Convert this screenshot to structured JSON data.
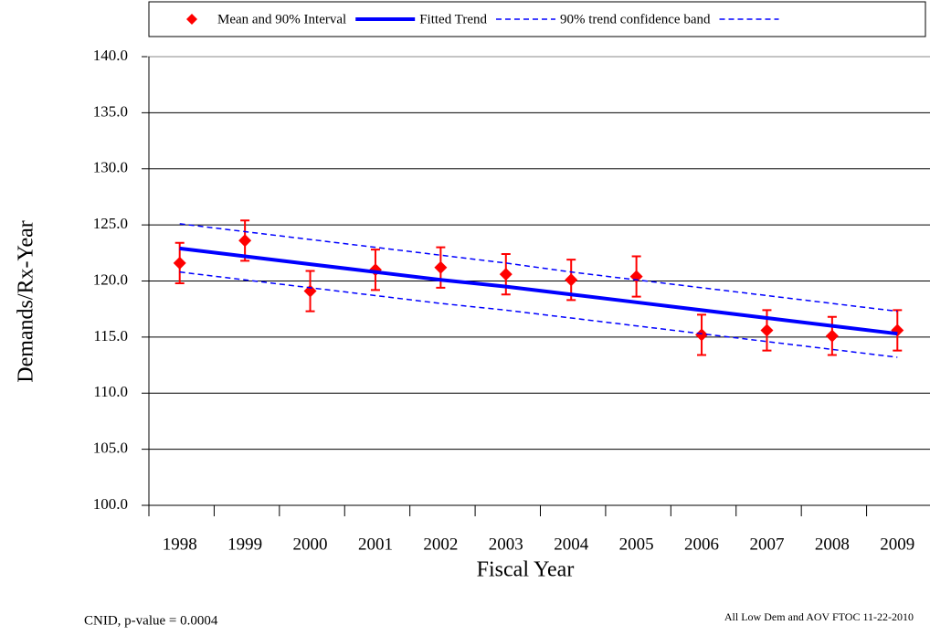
{
  "chart_data": {
    "type": "line",
    "xlabel": "Fiscal Year",
    "ylabel": "Demands/Rx-Year",
    "categories": [
      "1998",
      "1999",
      "2000",
      "2001",
      "2002",
      "2003",
      "2004",
      "2005",
      "2006",
      "2007",
      "2008",
      "2009"
    ],
    "series": [
      {
        "name": "Mean and 90% Interval",
        "color": "#ff0000",
        "style": "marker",
        "values": [
          121.6,
          123.6,
          119.1,
          121.0,
          121.2,
          120.6,
          120.1,
          120.4,
          115.2,
          115.6,
          115.1,
          115.6
        ],
        "errors": [
          1.8,
          1.8,
          1.8,
          1.8,
          1.8,
          1.8,
          1.8,
          1.8,
          1.8,
          1.8,
          1.7,
          1.8
        ]
      },
      {
        "name": "Fitted Trend",
        "color": "#0000ff",
        "style": "solid",
        "values": [
          122.9,
          122.2,
          121.5,
          120.8,
          120.1,
          119.5,
          118.8,
          118.1,
          117.4,
          116.7,
          116.0,
          115.3
        ]
      },
      {
        "name": "90% trend confidence band",
        "color": "#0000ff",
        "style": "dashed",
        "values": [
          125.1,
          124.4,
          123.7,
          123.0,
          122.3,
          121.6,
          120.8,
          120.1,
          119.4,
          118.7,
          118.0,
          117.3
        ]
      },
      {
        "color": "#0000ff",
        "style": "dashed",
        "values": [
          120.8,
          120.1,
          119.4,
          118.7,
          118.0,
          117.4,
          116.7,
          116.0,
          115.3,
          114.6,
          113.9,
          113.2
        ]
      }
    ],
    "ylim": [
      100,
      140
    ],
    "yticks": [
      {
        "value": 100,
        "label": "100.0"
      },
      {
        "value": 105,
        "label": "105.0"
      },
      {
        "value": 110,
        "label": "110.0"
      },
      {
        "value": 115,
        "label": "115.0"
      },
      {
        "value": 120,
        "label": "120.0"
      },
      {
        "value": 125,
        "label": "125.0"
      },
      {
        "value": 130,
        "label": "130.0"
      },
      {
        "value": 135,
        "label": "135.0"
      },
      {
        "value": 140,
        "label": "140.0"
      }
    ],
    "grid": true,
    "legend": "top",
    "footnote_left": "CNID, p-value = 0.0004",
    "footnote_right": "All Low Dem and AOV FTOC 11-22-2010"
  }
}
